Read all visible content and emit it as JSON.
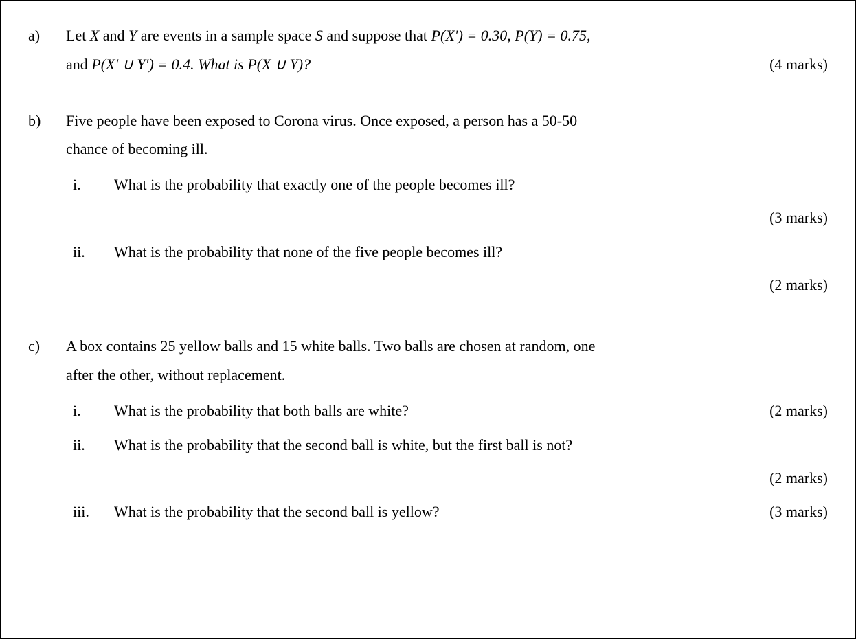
{
  "questions": {
    "a": {
      "label": "a)",
      "line1_part1": "Let ",
      "line1_X": "X",
      "line1_part2": " and ",
      "line1_Y": "Y",
      "line1_part3": " are events in a sample space ",
      "line1_S": "S",
      "line1_part4": " and suppose that ",
      "line1_px": "P",
      "line1_px_arg": "(X′)  =  0.30, ",
      "line1_py": "P",
      "line1_py_arg": "(Y)  = 0.75,",
      "line2_part1": "and ",
      "line2_pxy": "P",
      "line2_pxy_arg": "(X′ ∪ Y′)  =  0.4. What is ",
      "line2_p": "P",
      "line2_p_arg": "(X  ∪ Y)?",
      "marks": "(4 marks)"
    },
    "b": {
      "label": "b)",
      "intro_line1": "Five people have been exposed to Corona virus. Once exposed, a person has a 50-50",
      "intro_line2": "chance of becoming ill.",
      "sub": {
        "i": {
          "label": "i.",
          "text": "What is the probability that exactly one of the people becomes ill?",
          "marks": "(3 marks)"
        },
        "ii": {
          "label": "ii.",
          "text": "What is the probability that none of the five people becomes ill?",
          "marks": "(2 marks)"
        }
      }
    },
    "c": {
      "label": "c)",
      "intro_line1": "A box contains 25 yellow balls and 15 white balls. Two balls are chosen at random, one",
      "intro_line2": "after the other, without replacement.",
      "sub": {
        "i": {
          "label": "i.",
          "text": "What is the probability that both balls are white?",
          "marks": "(2 marks)"
        },
        "ii": {
          "label": "ii.",
          "text": "What is the probability that the second ball is white, but the first ball is not?",
          "marks": "(2 marks)"
        },
        "iii": {
          "label": "iii.",
          "text": "What is the probability that the second ball is yellow?",
          "marks": "(3 marks)"
        }
      }
    }
  }
}
